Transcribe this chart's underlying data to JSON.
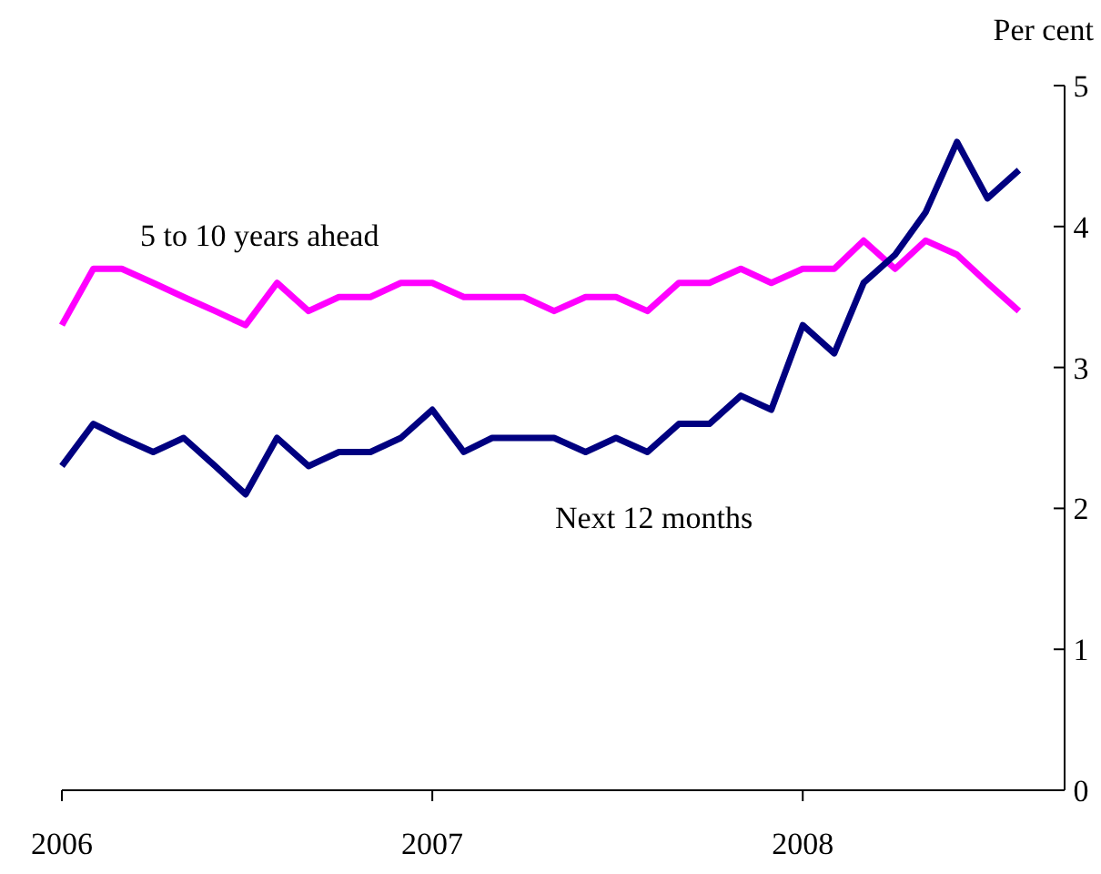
{
  "chart_data": {
    "type": "line",
    "ylabel": "Per cent",
    "x": [
      "2006-01",
      "2006-02",
      "2006-03",
      "2006-04",
      "2006-05",
      "2006-06",
      "2006-07",
      "2006-08",
      "2006-09",
      "2006-10",
      "2006-11",
      "2006-12",
      "2007-01",
      "2007-02",
      "2007-03",
      "2007-04",
      "2007-05",
      "2007-06",
      "2007-07",
      "2007-08",
      "2007-09",
      "2007-10",
      "2007-11",
      "2007-12",
      "2008-01",
      "2008-02",
      "2008-03",
      "2008-04",
      "2008-05",
      "2008-06",
      "2008-07",
      "2008-08"
    ],
    "series": [
      {
        "name": "5 to 10 years ahead",
        "color": "#ff00ff",
        "values": [
          3.3,
          3.7,
          3.7,
          3.6,
          3.5,
          3.4,
          3.3,
          3.6,
          3.4,
          3.5,
          3.5,
          3.6,
          3.6,
          3.5,
          3.5,
          3.5,
          3.4,
          3.5,
          3.5,
          3.4,
          3.6,
          3.6,
          3.7,
          3.6,
          3.7,
          3.7,
          3.9,
          3.7,
          3.9,
          3.8,
          3.6,
          3.4
        ]
      },
      {
        "name": "Next 12 months",
        "color": "#000080",
        "values": [
          2.3,
          2.6,
          2.5,
          2.4,
          2.5,
          2.3,
          2.1,
          2.5,
          2.3,
          2.4,
          2.4,
          2.5,
          2.7,
          2.4,
          2.5,
          2.5,
          2.5,
          2.4,
          2.5,
          2.4,
          2.6,
          2.6,
          2.8,
          2.7,
          3.3,
          3.1,
          3.6,
          3.8,
          4.1,
          4.6,
          4.2,
          4.4
        ]
      }
    ],
    "xlim": [
      "2006-01",
      "2008-09-15"
    ],
    "xticks": [
      {
        "value": "2006-01",
        "label": "2006"
      },
      {
        "value": "2007-01",
        "label": "2007"
      },
      {
        "value": "2008-01",
        "label": "2008"
      }
    ],
    "ylim": [
      0,
      5
    ],
    "yticks": [
      0,
      1,
      2,
      3,
      4,
      5
    ],
    "grid": false,
    "line_style": "solid"
  }
}
